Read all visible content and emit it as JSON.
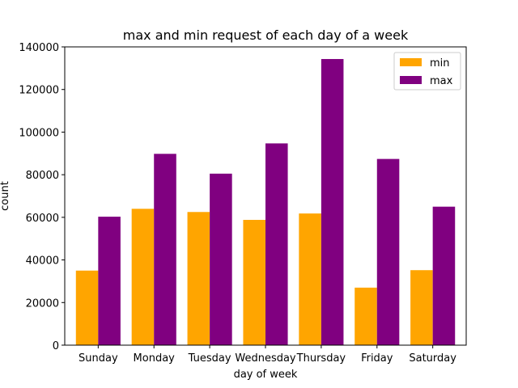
{
  "chart_data": {
    "type": "bar",
    "title": "max and min request of each day of a week",
    "xlabel": "day of week",
    "ylabel": "count",
    "ylim": [
      0,
      140000
    ],
    "yticks": [
      0,
      20000,
      40000,
      60000,
      80000,
      100000,
      120000,
      140000
    ],
    "categories": [
      "Sunday",
      "Monday",
      "Tuesday",
      "Wednesday",
      "Thursday",
      "Friday",
      "Saturday"
    ],
    "series": [
      {
        "name": "min",
        "color": "#ffa500",
        "values": [
          35000,
          64000,
          62500,
          58800,
          61800,
          27000,
          35200
        ]
      },
      {
        "name": "max",
        "color": "#800080",
        "values": [
          60300,
          89800,
          80500,
          94700,
          134300,
          87400,
          65000
        ]
      }
    ],
    "grid": false,
    "legend_position": "top-right"
  }
}
